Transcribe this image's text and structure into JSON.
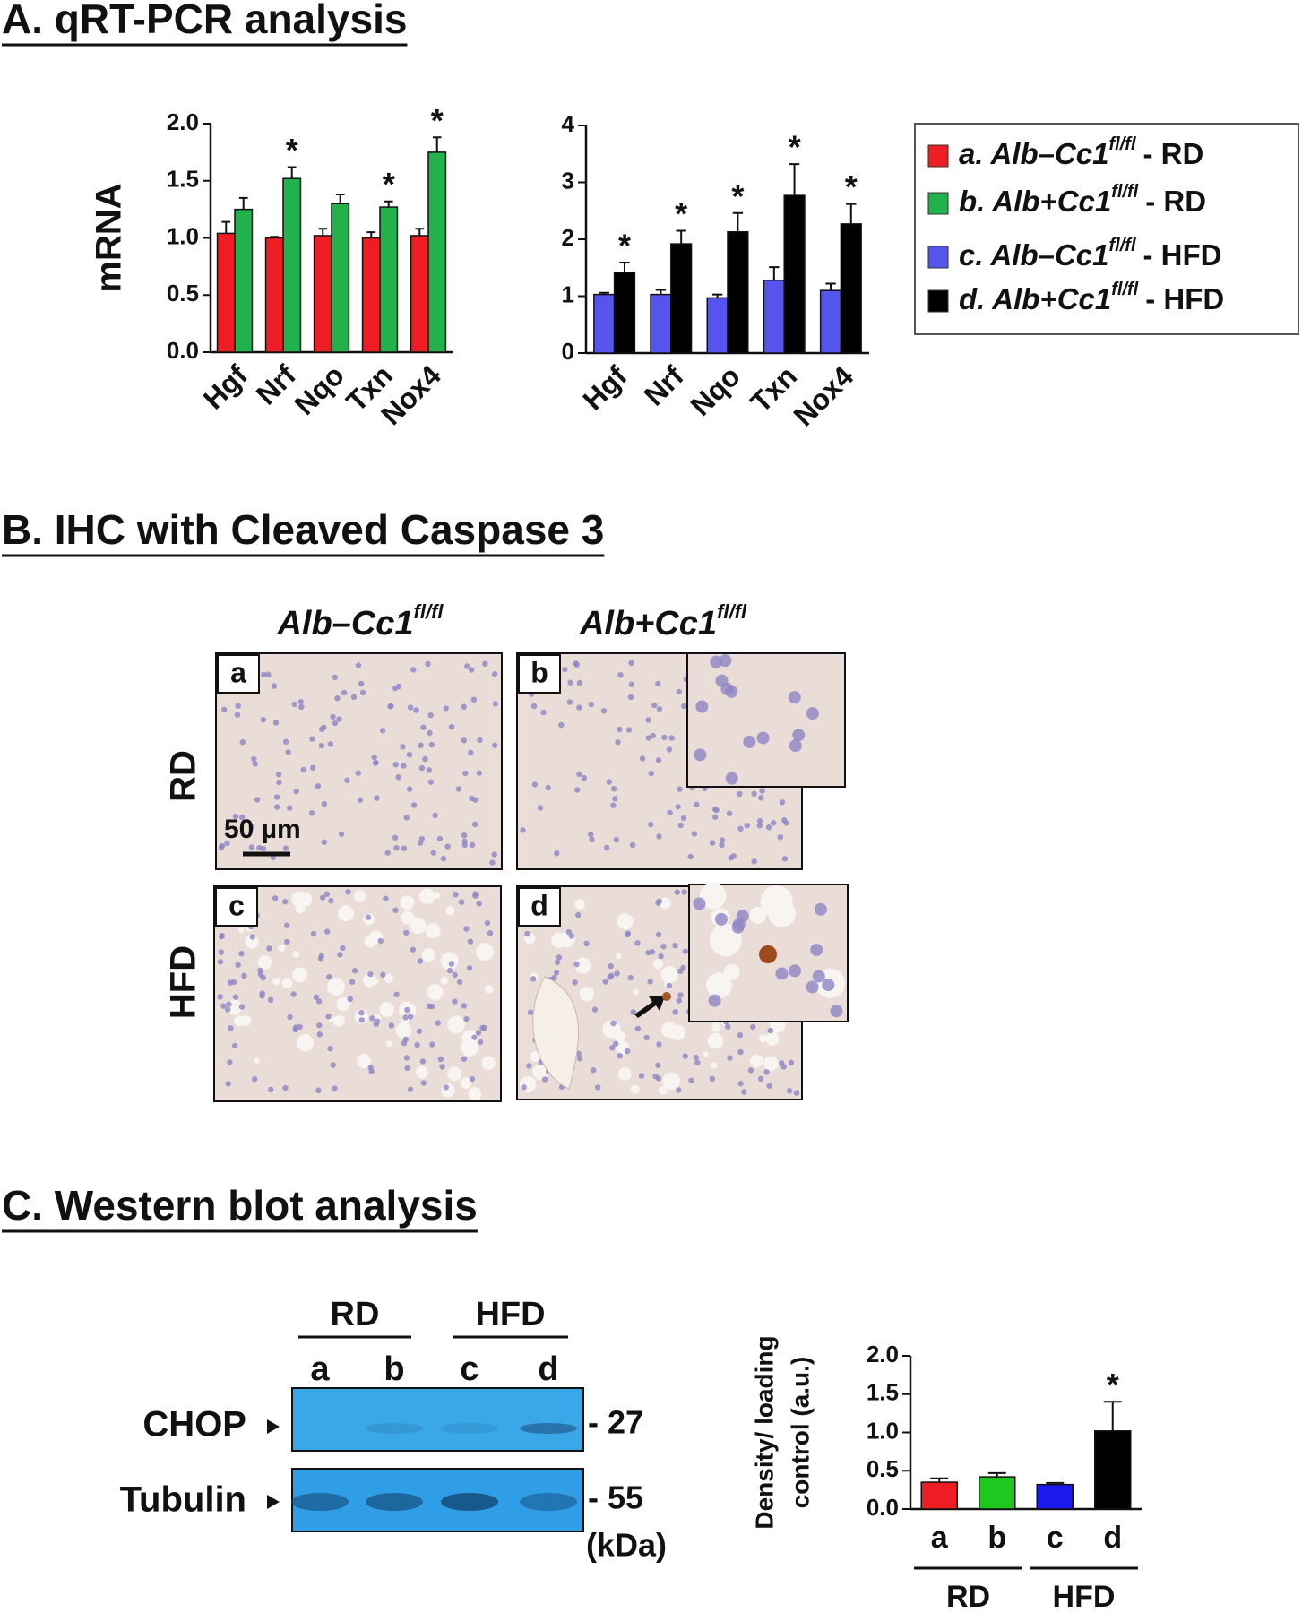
{
  "sections": [
    "A. qRT-PCR analysis",
    "B. IHC with Cleaved Caspase 3",
    "C. Western blot analysis"
  ],
  "chart_data": [
    {
      "type": "bar",
      "ylabel": "mRNA",
      "categories": [
        "Hgf",
        "Nrf",
        "Nqo",
        "Txn",
        "Nox4"
      ],
      "ylim": [
        0,
        2
      ],
      "yticks": [
        {
          "value": 0,
          "label": "0.0"
        },
        {
          "value": 0.5,
          "label": "0.5"
        },
        {
          "value": 1,
          "label": "1.0"
        },
        {
          "value": 1.5,
          "label": "1.5"
        },
        {
          "value": 2,
          "label": "2.0"
        }
      ],
      "series": [
        {
          "name": "a. Alb–Cc1",
          "superscript": "fl/fl",
          "suffix": "- RD",
          "color": "#ee1d23",
          "values": [
            1.04,
            1.0,
            1.02,
            1.0,
            1.02
          ],
          "errors": [
            0.1,
            0.01,
            0.06,
            0.05,
            0.06
          ],
          "significance": [
            null,
            null,
            null,
            null,
            null
          ]
        },
        {
          "name": "b. Alb+Cc1",
          "superscript": "fl/fl",
          "suffix": "- RD",
          "color": "#21b24b",
          "values": [
            1.25,
            1.52,
            1.3,
            1.27,
            1.75
          ],
          "errors": [
            0.1,
            0.1,
            0.08,
            0.05,
            0.13
          ],
          "significance": [
            null,
            "*",
            null,
            "*",
            "*"
          ]
        }
      ]
    },
    {
      "type": "bar",
      "categories": [
        "Hgf",
        "Nrf",
        "Nqo",
        "Txn",
        "Nox4"
      ],
      "ylim": [
        0,
        4
      ],
      "yticks": [
        0,
        1,
        2,
        3,
        4
      ],
      "series": [
        {
          "name": "c. Alb–Cc1",
          "superscript": "fl/fl",
          "suffix": "- HFD",
          "color": "#5555ee",
          "values": [
            1.03,
            1.03,
            0.97,
            1.28,
            1.1
          ],
          "errors": [
            0.03,
            0.08,
            0.06,
            0.23,
            0.12
          ],
          "significance": [
            null,
            null,
            null,
            null,
            null
          ]
        },
        {
          "name": "d. Alb+Cc1",
          "superscript": "fl/fl",
          "suffix": "- HFD",
          "color": "#000000",
          "values": [
            1.42,
            1.92,
            2.13,
            2.77,
            2.27
          ],
          "errors": [
            0.17,
            0.23,
            0.33,
            0.55,
            0.35
          ],
          "significance": [
            "*",
            "*",
            "*",
            "*",
            "*"
          ]
        }
      ]
    },
    {
      "type": "bar",
      "ylabel": [
        "Density/ loading",
        "control (a.u.)"
      ],
      "categories": [
        "a",
        "b",
        "c",
        "d"
      ],
      "groups": [
        "RD",
        "HFD"
      ],
      "ylim": [
        0,
        2
      ],
      "yticks": [
        {
          "value": 0,
          "label": "0.0"
        },
        {
          "value": 0.5,
          "label": "0.5"
        },
        {
          "value": 1,
          "label": "1.0"
        },
        {
          "value": 1.5,
          "label": "1.5"
        },
        {
          "value": 2,
          "label": "2.0"
        }
      ],
      "series": [
        {
          "colors": [
            "#ee1d23",
            "#1ec81e",
            "#1a1aee",
            "#000000"
          ],
          "values": [
            0.35,
            0.42,
            0.32,
            1.02
          ],
          "errors": [
            0.05,
            0.05,
            0.02,
            0.38
          ],
          "significance": [
            null,
            null,
            null,
            "*"
          ]
        }
      ]
    }
  ],
  "ihc": {
    "columns": [
      {
        "name": "Alb–Cc1",
        "superscript": "fl/fl"
      },
      {
        "name": "Alb+Cc1",
        "superscript": "fl/fl"
      }
    ],
    "rows": [
      "RD",
      "HFD"
    ],
    "panels": [
      "a",
      "b",
      "c",
      "d"
    ],
    "scale_bar": "50 µm"
  },
  "blot": {
    "groups": [
      "RD",
      "HFD"
    ],
    "lanes": [
      "a",
      "b",
      "c",
      "d"
    ],
    "proteins": [
      "CHOP",
      "Tubulin"
    ],
    "markers": [
      "- 27",
      "- 55"
    ],
    "unit": "(kDa)"
  }
}
